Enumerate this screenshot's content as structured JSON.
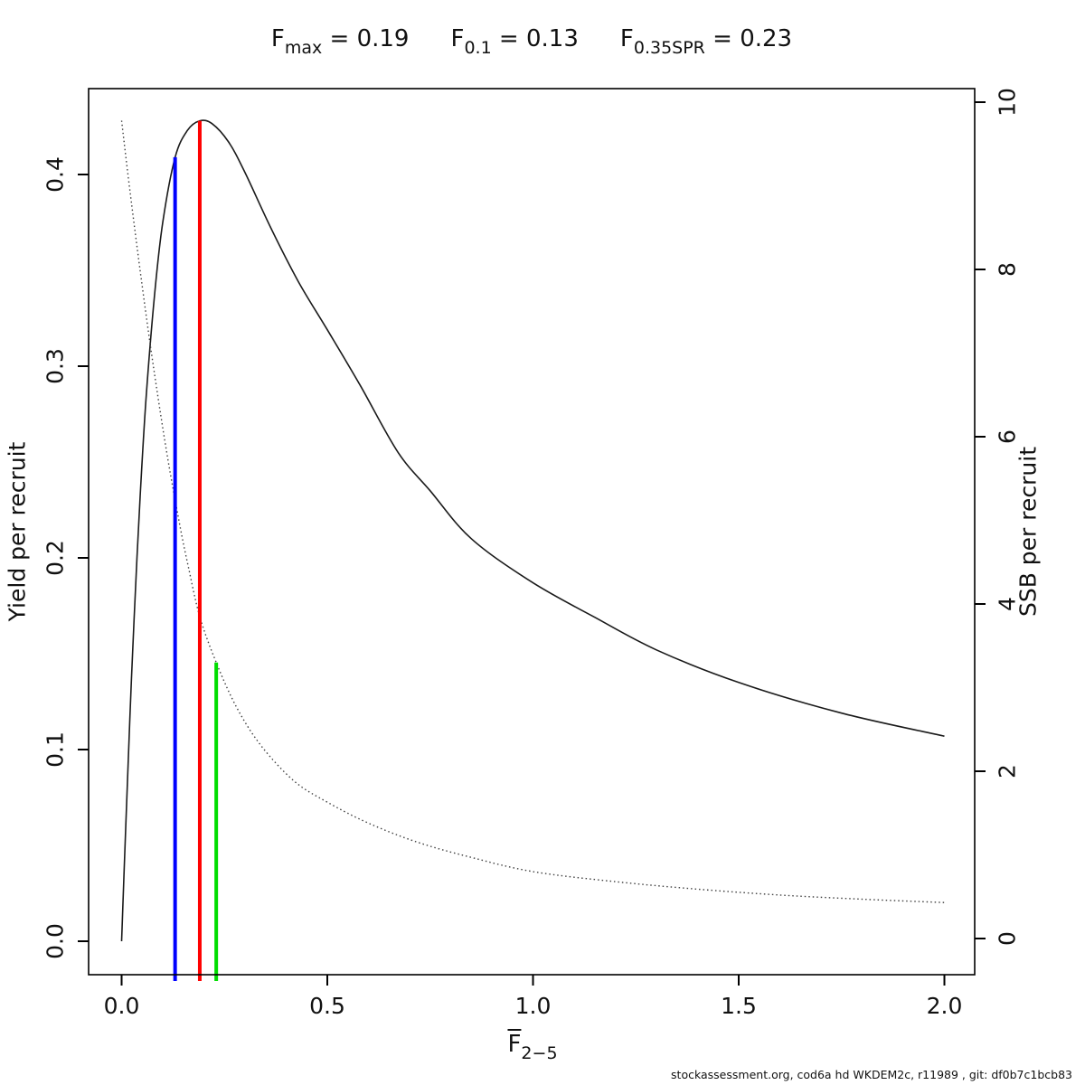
{
  "page": {
    "background": "#ffffff"
  },
  "title": {
    "parts": [
      {
        "base": "F",
        "sub": "max",
        "eq": " = 0.19"
      },
      {
        "base": "F",
        "sub": "0.1",
        "eq": " = 0.13"
      },
      {
        "base": "F",
        "sub": "0.35SPR",
        "eq": " = 0.23"
      }
    ]
  },
  "footer": {
    "text": "stockassessment.org, cod6a hd WKDEM2c, r11989 , git: df0b7c1bcb83"
  },
  "chart_data": {
    "type": "line",
    "title": "Fmax = 0.19, F0.1 = 0.13, F0.35SPR = 0.23",
    "x_axis": {
      "label_base": "F",
      "label_sub": "2−5",
      "tick_labels": [
        "0.0",
        "0.5",
        "1.0",
        "1.5",
        "2.0"
      ],
      "tick_values": [
        0,
        0.5,
        1,
        1.5,
        2
      ],
      "range": [
        0,
        2.07
      ]
    },
    "y_left_axis": {
      "label": "Yield per recruit",
      "tick_labels": [
        "0.0",
        "0.1",
        "0.2",
        "0.3",
        "0.4"
      ],
      "tick_values": [
        0,
        0.1,
        0.2,
        0.3,
        0.4
      ],
      "range": [
        0,
        0.445
      ]
    },
    "y_right_axis": {
      "label": "SSB per recruit",
      "tick_labels": [
        "0",
        "2",
        "4",
        "6",
        "8",
        "10"
      ],
      "tick_values": [
        0,
        2,
        4,
        6,
        8,
        10
      ],
      "range": [
        0,
        10.2
      ]
    },
    "grid": false,
    "series": [
      {
        "name": "yield-per-recruit",
        "axis": "left",
        "style": "solid",
        "color": "#1a1a1a",
        "points": [
          [
            0,
            0
          ],
          [
            0.01,
            0.06
          ],
          [
            0.02,
            0.116
          ],
          [
            0.03,
            0.167
          ],
          [
            0.045,
            0.232
          ],
          [
            0.06,
            0.285
          ],
          [
            0.08,
            0.337
          ],
          [
            0.1,
            0.375
          ],
          [
            0.13,
            0.409
          ],
          [
            0.16,
            0.423
          ],
          [
            0.19,
            0.428
          ],
          [
            0.22,
            0.4265
          ],
          [
            0.26,
            0.417
          ],
          [
            0.3,
            0.401
          ],
          [
            0.363,
            0.372
          ],
          [
            0.43,
            0.344
          ],
          [
            0.5,
            0.319
          ],
          [
            0.58,
            0.29
          ],
          [
            0.672,
            0.255
          ],
          [
            0.75,
            0.235
          ],
          [
            0.85,
            0.21
          ],
          [
            1.0,
            0.187
          ],
          [
            1.15,
            0.169
          ],
          [
            1.3,
            0.152
          ],
          [
            1.5,
            0.135
          ],
          [
            1.75,
            0.119
          ],
          [
            2.0,
            0.107
          ]
        ]
      },
      {
        "name": "ssb-per-recruit",
        "axis": "right",
        "style": "dotted",
        "color": "#404040",
        "points": [
          [
            0,
            9.78
          ],
          [
            0.02,
            8.95
          ],
          [
            0.05,
            7.8
          ],
          [
            0.08,
            6.75
          ],
          [
            0.11,
            5.8
          ],
          [
            0.14,
            4.98
          ],
          [
            0.162,
            4.45
          ],
          [
            0.19,
            3.85
          ],
          [
            0.23,
            3.3
          ],
          [
            0.28,
            2.76
          ],
          [
            0.34,
            2.3
          ],
          [
            0.42,
            1.88
          ],
          [
            0.5,
            1.63
          ],
          [
            0.6,
            1.38
          ],
          [
            0.72,
            1.15
          ],
          [
            0.85,
            0.97
          ],
          [
            1.0,
            0.8
          ],
          [
            1.2,
            0.68
          ],
          [
            1.4,
            0.59
          ],
          [
            1.6,
            0.52
          ],
          [
            1.8,
            0.47
          ],
          [
            2.0,
            0.43
          ]
        ]
      }
    ],
    "reference_points": [
      {
        "name": "F0.1",
        "f": 0.13,
        "value": 0.409,
        "value_axis": "left",
        "color": "#0000ff"
      },
      {
        "name": "Fmax",
        "f": 0.19,
        "value": 0.428,
        "value_axis": "left",
        "color": "#ff0000"
      },
      {
        "name": "F0.35SPR",
        "f": 0.23,
        "value": 3.3,
        "value_axis": "right",
        "color": "#00dd00"
      }
    ],
    "legend": null
  }
}
